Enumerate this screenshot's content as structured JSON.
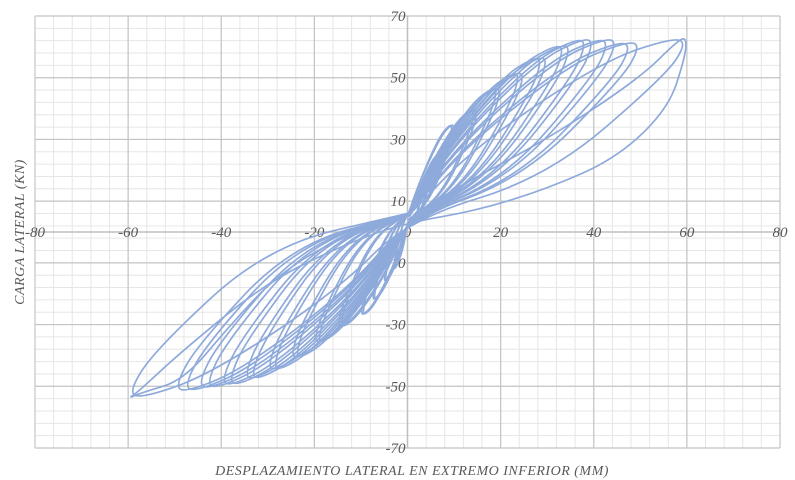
{
  "chart_data": {
    "type": "line",
    "title": "",
    "xlabel": "DESPLAZAMIENTO LATERAL EN EXTREMO INFERIOR (MM)",
    "ylabel": "CARGA LATERAL (KN)",
    "xlim": [
      -80,
      80
    ],
    "ylim": [
      -70,
      70
    ],
    "x_ticks": [
      -80,
      -60,
      -40,
      -20,
      0,
      20,
      40,
      60,
      80
    ],
    "y_ticks": [
      -70,
      -50,
      -30,
      -10,
      10,
      30,
      50,
      70
    ],
    "x_tick_labels": [
      "-80",
      "-60",
      "-40",
      "-20",
      "0",
      "20",
      "40",
      "60",
      "80"
    ],
    "y_tick_labels": [
      "-70",
      "-50",
      "-30",
      "-10",
      "10",
      "30",
      "50",
      "70"
    ],
    "grid": true,
    "minor_grid": true,
    "legend": "none",
    "series_color": "#8eaadb",
    "series": [
      {
        "name": "",
        "cycles": [
          {
            "amp": 3,
            "peak_pos": 12,
            "peak_neg": -12,
            "repeats": 2
          },
          {
            "amp": 5,
            "peak_pos": 18,
            "peak_neg": -16,
            "repeats": 2
          },
          {
            "amp": 7.5,
            "peak_pos": 26,
            "peak_neg": -22,
            "repeats": 2
          },
          {
            "amp": 10,
            "peak_pos": 35,
            "peak_neg": -27,
            "repeats": 2
          },
          {
            "amp": 15,
            "peak_pos": 40,
            "peak_neg": -31,
            "repeats": 2
          },
          {
            "amp": 20,
            "peak_pos": 47,
            "peak_neg": -36,
            "repeats": 2
          },
          {
            "amp": 25,
            "peak_pos": 52,
            "peak_neg": -41,
            "repeats": 2
          },
          {
            "amp": 30,
            "peak_pos": 57,
            "peak_neg": -45,
            "repeats": 2
          },
          {
            "amp": 35,
            "peak_pos": 61,
            "peak_neg": -48,
            "repeats": 2
          },
          {
            "amp": 40,
            "peak_pos": 63,
            "peak_neg": -50,
            "repeats": 2
          },
          {
            "amp": 45,
            "peak_pos": 63,
            "peak_neg": -51,
            "repeats": 2
          },
          {
            "amp": 50,
            "peak_pos": 62,
            "peak_neg": -52,
            "repeats": 2
          },
          {
            "amp": 60,
            "peak_pos": 63,
            "peak_neg": -54,
            "repeats": 1
          }
        ]
      }
    ]
  }
}
